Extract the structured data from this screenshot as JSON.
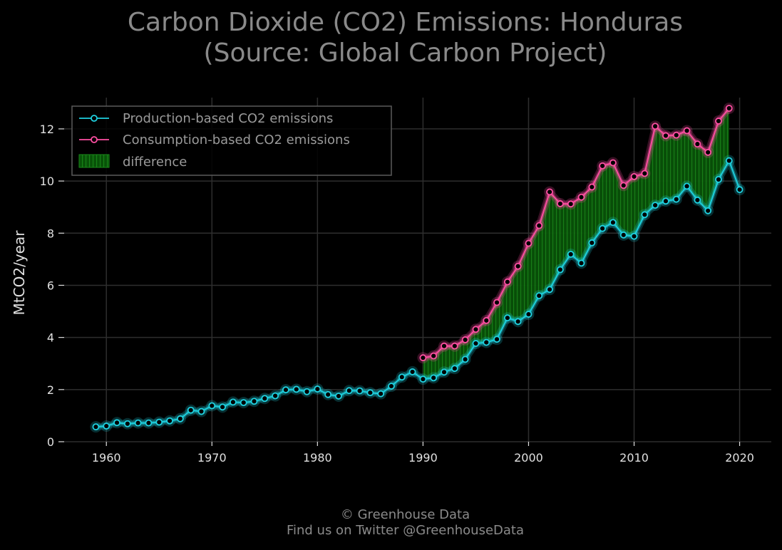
{
  "title_lines": [
    "Carbon Dioxide (CO2) Emissions: Honduras",
    "(Source: Global Carbon Project)"
  ],
  "footer_lines": [
    "© Greenhouse Data",
    "Find us on Twitter @GreenhouseData"
  ],
  "colors": {
    "background": "#000000",
    "production": "#1fd1e0",
    "consumption": "#ff4fa3",
    "difference_fill": "#0a5a0a",
    "grid": "#2e2e2e",
    "text": "#e0e0e0",
    "title": "#8a8a8a"
  },
  "chart_data": {
    "type": "line",
    "title": "Carbon Dioxide (CO2) Emissions: Honduras (Source: Global Carbon Project)",
    "xlabel": "",
    "ylabel": "MtCO2/year",
    "xlim": [
      1956,
      2023
    ],
    "ylim": [
      0,
      13.2
    ],
    "xticks": [
      1960,
      1970,
      1980,
      1990,
      2000,
      2010,
      2020
    ],
    "yticks": [
      0,
      2,
      4,
      6,
      8,
      10,
      12
    ],
    "grid": true,
    "legend_position": "top-left",
    "legend": [
      "Production-based CO2 emissions",
      "Consumption-based CO2 emissions",
      "difference"
    ],
    "series": [
      {
        "name": "Production-based CO2 emissions",
        "x": [
          1959,
          1960,
          1961,
          1962,
          1963,
          1964,
          1965,
          1966,
          1967,
          1968,
          1969,
          1970,
          1971,
          1972,
          1973,
          1974,
          1975,
          1976,
          1977,
          1978,
          1979,
          1980,
          1981,
          1982,
          1983,
          1984,
          1985,
          1986,
          1987,
          1988,
          1989,
          1990,
          1991,
          1992,
          1993,
          1994,
          1995,
          1996,
          1997,
          1998,
          1999,
          2000,
          2001,
          2002,
          2003,
          2004,
          2005,
          2006,
          2007,
          2008,
          2009,
          2010,
          2011,
          2012,
          2013,
          2014,
          2015,
          2016,
          2017,
          2018,
          2019,
          2020
        ],
        "values": [
          0.57,
          0.6,
          0.73,
          0.69,
          0.72,
          0.72,
          0.75,
          0.8,
          0.88,
          1.21,
          1.16,
          1.38,
          1.33,
          1.52,
          1.5,
          1.55,
          1.66,
          1.76,
          1.99,
          2.01,
          1.92,
          2.02,
          1.81,
          1.75,
          1.96,
          1.95,
          1.88,
          1.84,
          2.13,
          2.48,
          2.68,
          2.4,
          2.45,
          2.67,
          2.81,
          3.16,
          3.77,
          3.81,
          3.93,
          4.75,
          4.61,
          4.89,
          5.6,
          5.84,
          6.6,
          7.19,
          6.85,
          7.63,
          8.18,
          8.41,
          7.93,
          7.88,
          8.71,
          9.07,
          9.23,
          9.3,
          9.8,
          9.27,
          8.86,
          10.06,
          10.78,
          9.67
        ]
      },
      {
        "name": "Consumption-based CO2 emissions",
        "x": [
          1990,
          1991,
          1992,
          1993,
          1994,
          1995,
          1996,
          1997,
          1998,
          1999,
          2000,
          2001,
          2002,
          2003,
          2004,
          2005,
          2006,
          2007,
          2008,
          2009,
          2010,
          2011,
          2012,
          2013,
          2014,
          2015,
          2016,
          2017,
          2018,
          2019
        ],
        "values": [
          3.22,
          3.29,
          3.67,
          3.67,
          3.91,
          4.31,
          4.65,
          5.34,
          6.13,
          6.73,
          7.61,
          8.29,
          9.58,
          9.13,
          9.12,
          9.38,
          9.77,
          10.58,
          10.7,
          9.83,
          10.17,
          10.29,
          12.1,
          11.74,
          11.76,
          11.93,
          11.42,
          11.1,
          12.3,
          12.79
        ]
      }
    ]
  }
}
